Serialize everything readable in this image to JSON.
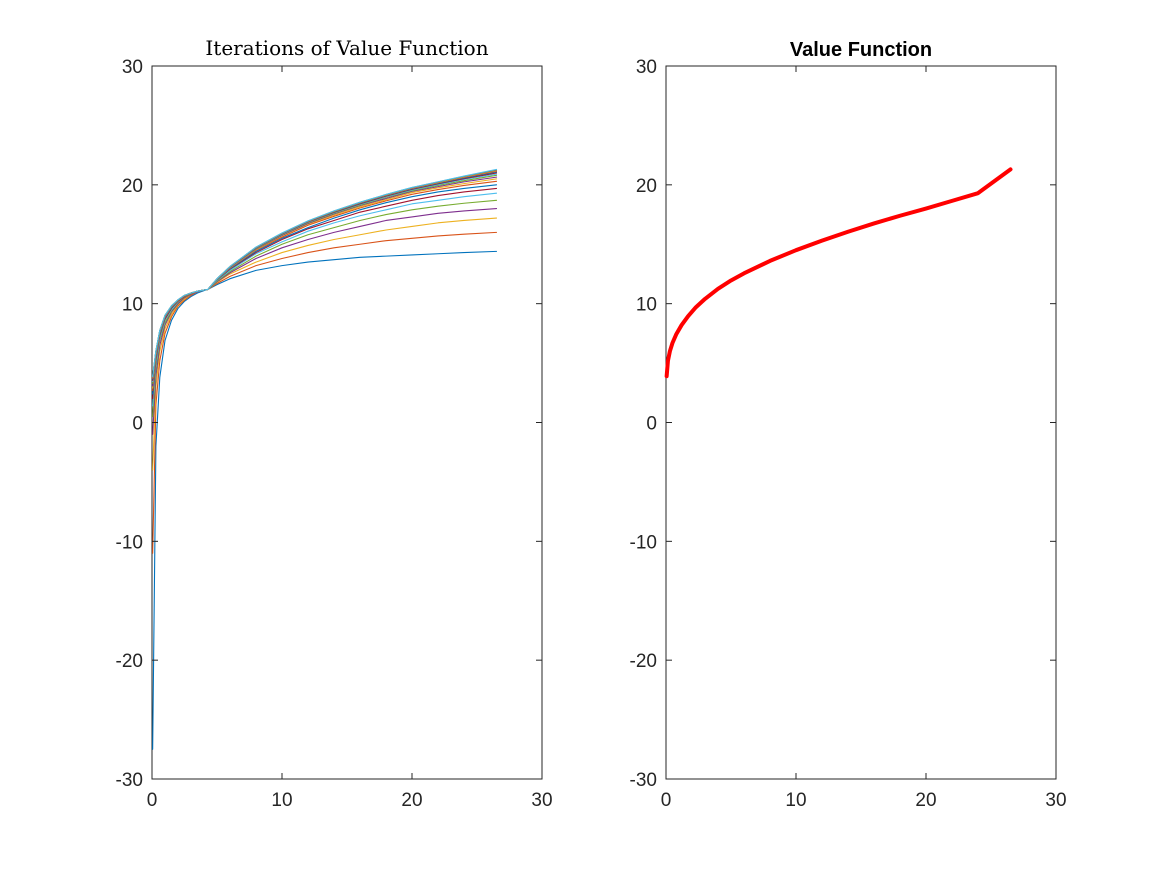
{
  "chart_data": [
    {
      "type": "line",
      "title": "Iterations of Value Function",
      "xlabel": "",
      "ylabel": "",
      "xlim": [
        0,
        30
      ],
      "ylim": [
        -30,
        30
      ],
      "xticks": [
        "0",
        "10",
        "20",
        "30"
      ],
      "yticks": [
        "-30",
        "-20",
        "-10",
        "0",
        "10",
        "20",
        "30"
      ],
      "grid": false,
      "series_colors": [
        "#0072BD",
        "#D95319",
        "#EDB120",
        "#7E2F8E",
        "#77AC30",
        "#4DBEEE",
        "#A2142F"
      ],
      "x": [
        0.05,
        0.3,
        0.6,
        1,
        1.5,
        2,
        2.5,
        3,
        3.5,
        4,
        4.3,
        5,
        6,
        8,
        10,
        12,
        14,
        16,
        18,
        20,
        22,
        24,
        26.5
      ],
      "series": [
        {
          "values": [
            -27.5,
            -2.0,
            3.8,
            6.9,
            8.6,
            9.6,
            10.2,
            10.6,
            10.9,
            11.1,
            11.2,
            11.6,
            12.1,
            12.8,
            13.2,
            13.5,
            13.7,
            13.9,
            14.0,
            14.1,
            14.2,
            14.3,
            14.4
          ]
        },
        {
          "values": [
            -11.0,
            1.5,
            5.2,
            7.5,
            8.9,
            9.8,
            10.3,
            10.7,
            11.0,
            11.15,
            11.2,
            11.7,
            12.3,
            13.2,
            13.8,
            14.3,
            14.7,
            15.0,
            15.3,
            15.5,
            15.7,
            15.85,
            16.0
          ]
        },
        {
          "values": [
            -4.0,
            3.0,
            6.0,
            7.9,
            9.1,
            9.9,
            10.4,
            10.8,
            11.0,
            11.15,
            11.2,
            11.8,
            12.5,
            13.5,
            14.3,
            14.9,
            15.4,
            15.8,
            16.2,
            16.5,
            16.8,
            17.0,
            17.2
          ]
        },
        {
          "values": [
            -1.0,
            3.9,
            6.5,
            8.2,
            9.3,
            10.0,
            10.5,
            10.8,
            11.0,
            11.15,
            11.2,
            11.85,
            12.6,
            13.8,
            14.7,
            15.4,
            16.0,
            16.5,
            17.0,
            17.3,
            17.6,
            17.8,
            18.0
          ]
        },
        {
          "values": [
            0.5,
            4.5,
            6.9,
            8.4,
            9.4,
            10.1,
            10.55,
            10.85,
            11.05,
            11.15,
            11.2,
            11.9,
            12.7,
            14.0,
            15.0,
            15.8,
            16.4,
            17.0,
            17.5,
            17.9,
            18.2,
            18.45,
            18.7
          ]
        },
        {
          "values": [
            1.4,
            4.9,
            7.1,
            8.6,
            9.5,
            10.15,
            10.6,
            10.9,
            11.05,
            11.15,
            11.2,
            11.95,
            12.8,
            14.2,
            15.2,
            16.1,
            16.8,
            17.4,
            17.9,
            18.4,
            18.7,
            19.0,
            19.3
          ]
        },
        {
          "values": [
            2.0,
            5.2,
            7.3,
            8.7,
            9.6,
            10.2,
            10.6,
            10.9,
            11.05,
            11.15,
            11.2,
            12.0,
            12.9,
            14.3,
            15.4,
            16.3,
            17.0,
            17.7,
            18.2,
            18.7,
            19.1,
            19.4,
            19.7
          ]
        },
        {
          "values": [
            2.4,
            5.4,
            7.4,
            8.8,
            9.65,
            10.25,
            10.65,
            10.9,
            11.05,
            11.15,
            11.2,
            12.0,
            12.95,
            14.4,
            15.5,
            16.4,
            17.2,
            17.9,
            18.5,
            19.0,
            19.4,
            19.7,
            20.0
          ]
        },
        {
          "values": [
            2.7,
            5.55,
            7.5,
            8.85,
            9.7,
            10.25,
            10.65,
            10.9,
            11.05,
            11.15,
            11.2,
            12.02,
            13.0,
            14.5,
            15.6,
            16.6,
            17.35,
            18.05,
            18.65,
            19.2,
            19.6,
            19.95,
            20.3
          ]
        },
        {
          "values": [
            2.9,
            5.65,
            7.55,
            8.9,
            9.72,
            10.27,
            10.66,
            10.9,
            11.05,
            11.15,
            11.2,
            12.04,
            13.02,
            14.55,
            15.7,
            16.7,
            17.45,
            18.15,
            18.75,
            19.35,
            19.75,
            20.1,
            20.5
          ]
        },
        {
          "values": [
            3.1,
            5.75,
            7.6,
            8.92,
            9.74,
            10.28,
            10.67,
            10.9,
            11.05,
            11.15,
            11.2,
            12.05,
            13.05,
            14.6,
            15.75,
            16.75,
            17.55,
            18.25,
            18.85,
            19.45,
            19.85,
            20.25,
            20.65
          ]
        },
        {
          "values": [
            3.3,
            5.82,
            7.63,
            8.95,
            9.76,
            10.29,
            10.68,
            10.9,
            11.05,
            11.15,
            11.2,
            12.06,
            13.07,
            14.63,
            15.8,
            16.8,
            17.6,
            18.3,
            18.95,
            19.5,
            19.95,
            20.35,
            20.8
          ]
        },
        {
          "values": [
            3.45,
            5.88,
            7.66,
            8.97,
            9.78,
            10.3,
            10.68,
            10.9,
            11.05,
            11.15,
            11.2,
            12.07,
            13.08,
            14.66,
            15.83,
            16.84,
            17.65,
            18.36,
            19.0,
            19.57,
            20.02,
            20.45,
            20.9
          ]
        },
        {
          "values": [
            3.55,
            5.92,
            7.68,
            8.98,
            9.79,
            10.3,
            10.69,
            10.9,
            11.05,
            11.15,
            11.2,
            12.08,
            13.09,
            14.68,
            15.86,
            16.87,
            17.68,
            18.4,
            19.05,
            19.62,
            20.08,
            20.52,
            21.0
          ]
        },
        {
          "values": [
            3.65,
            5.95,
            7.7,
            8.99,
            9.8,
            10.31,
            10.69,
            10.9,
            11.05,
            11.15,
            11.2,
            12.08,
            13.1,
            14.7,
            15.88,
            16.9,
            17.72,
            18.44,
            19.09,
            19.66,
            20.13,
            20.58,
            21.08
          ]
        },
        {
          "values": [
            3.72,
            5.98,
            7.72,
            9.0,
            9.8,
            10.31,
            10.69,
            10.9,
            11.05,
            11.15,
            11.2,
            12.09,
            13.11,
            14.72,
            15.9,
            16.92,
            17.75,
            18.47,
            19.12,
            19.7,
            20.17,
            20.63,
            21.15
          ]
        },
        {
          "values": [
            3.78,
            6.0,
            7.73,
            9.01,
            9.81,
            10.32,
            10.7,
            10.9,
            11.05,
            11.15,
            11.2,
            12.09,
            13.12,
            14.73,
            15.92,
            16.94,
            17.77,
            18.5,
            19.15,
            19.73,
            20.2,
            20.67,
            21.2
          ]
        },
        {
          "values": [
            3.82,
            6.02,
            7.74,
            9.01,
            9.81,
            10.32,
            10.7,
            10.9,
            11.05,
            11.15,
            11.2,
            12.1,
            13.12,
            14.74,
            15.93,
            16.95,
            17.79,
            18.52,
            19.17,
            19.75,
            20.23,
            20.7,
            21.24
          ]
        },
        {
          "values": [
            3.86,
            6.03,
            7.75,
            9.02,
            9.82,
            10.32,
            10.7,
            10.9,
            11.05,
            11.15,
            11.2,
            12.1,
            13.13,
            14.75,
            15.94,
            16.96,
            17.8,
            18.53,
            19.18,
            19.77,
            20.25,
            20.72,
            21.27
          ]
        },
        {
          "values": [
            3.88,
            6.04,
            7.76,
            9.02,
            9.82,
            10.33,
            10.7,
            10.9,
            11.05,
            11.15,
            11.2,
            12.1,
            13.13,
            14.76,
            15.95,
            16.97,
            17.81,
            18.54,
            19.19,
            19.78,
            20.26,
            20.74,
            21.3
          ]
        }
      ]
    },
    {
      "type": "line",
      "title": "Value Function",
      "xlabel": "",
      "ylabel": "",
      "xlim": [
        0,
        30
      ],
      "ylim": [
        -30,
        30
      ],
      "xticks": [
        "0",
        "10",
        "20",
        "30"
      ],
      "yticks": [
        "-30",
        "-20",
        "-10",
        "0",
        "10",
        "20",
        "30"
      ],
      "grid": false,
      "line_color": "#FF0000",
      "x": [
        0.05,
        0.15,
        0.3,
        0.5,
        0.8,
        1.2,
        1.7,
        2.3,
        3,
        4,
        5,
        6,
        8,
        10,
        12,
        14,
        16,
        18,
        20,
        22,
        24,
        26.5
      ],
      "series": [
        {
          "values": [
            3.9,
            5.2,
            6.0,
            6.7,
            7.45,
            8.2,
            8.95,
            9.7,
            10.4,
            11.25,
            11.95,
            12.55,
            13.6,
            14.5,
            15.3,
            16.05,
            16.75,
            17.4,
            18.0,
            18.65,
            19.3,
            21.3
          ]
        }
      ]
    }
  ]
}
